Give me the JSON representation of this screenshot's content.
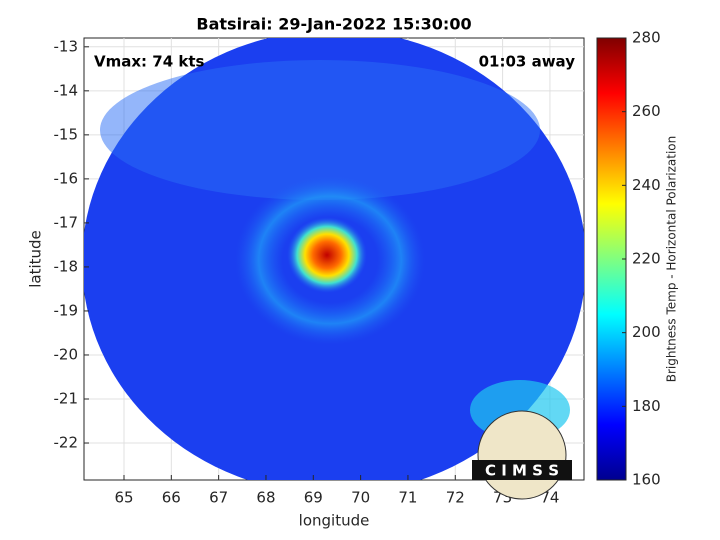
{
  "chart_data": {
    "type": "image",
    "title": "Batsirai: 29-Jan-2022 15:30:00",
    "xlabel": "longitude",
    "ylabel": "latitude",
    "annotations": [
      "Vmax: 74 kts",
      "01:03 away"
    ],
    "xlim": [
      64.155,
      74.72
    ],
    "xticks": [
      65,
      66,
      67,
      68,
      69,
      70,
      71,
      72,
      73,
      74
    ],
    "ylim": [
      -22.84,
      -12.8
    ],
    "yticks": [
      -13,
      -14,
      -15,
      -16,
      -17,
      -18,
      -19,
      -20,
      -21,
      -22
    ],
    "grid": true,
    "colorbar": {
      "label": "Brightness Temp - Horizontal Polarization",
      "lim": [
        160,
        280
      ],
      "ticks": [
        160,
        180,
        200,
        220,
        240,
        260,
        280
      ],
      "colormap": "jet"
    },
    "logo_text": "C I M S S"
  }
}
